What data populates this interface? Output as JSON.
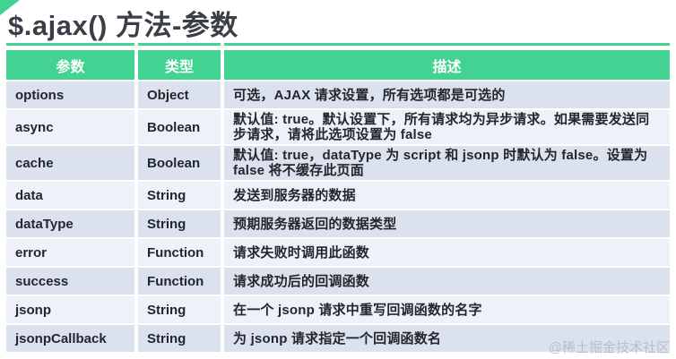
{
  "page": {
    "title": "$.ajax() 方法-参数",
    "watermark": "@稀土掘金技术社区"
  },
  "colors": {
    "accent_green": "#42d393",
    "header_text": "#ffffff",
    "row_odd_bg": "#dce2ed",
    "row_even_bg": "#eef1f7",
    "title_text": "#3a3f47",
    "body_text": "#22262e",
    "watermark_text": "#b6bfcb"
  },
  "table": {
    "headers": [
      "参数",
      "类型",
      "描述"
    ],
    "rows": [
      {
        "param": "options",
        "type": "Object",
        "desc": "可选，AJAX 请求设置，所有选项都是可选的"
      },
      {
        "param": "async",
        "type": "Boolean",
        "desc": "默认值: true。默认设置下，所有请求均为异步请求。如果需要发送同步请求，请将此选项设置为 false"
      },
      {
        "param": "cache",
        "type": "Boolean",
        "desc": "默认值: true，dataType 为 script 和 jsonp 时默认为 false。设置为 false 将不缓存此页面"
      },
      {
        "param": "data",
        "type": "String",
        "desc": "发送到服务器的数据"
      },
      {
        "param": "dataType",
        "type": "String",
        "desc": "预期服务器返回的数据类型"
      },
      {
        "param": "error",
        "type": "Function",
        "desc": "请求失败时调用此函数"
      },
      {
        "param": "success",
        "type": "Function",
        "desc": "请求成功后的回调函数"
      },
      {
        "param": "jsonp",
        "type": "String",
        "desc": "在一个 jsonp 请求中重写回调函数的名字"
      },
      {
        "param": "jsonpCallback",
        "type": "String",
        "desc": "为 jsonp 请求指定一个回调函数名"
      }
    ]
  }
}
